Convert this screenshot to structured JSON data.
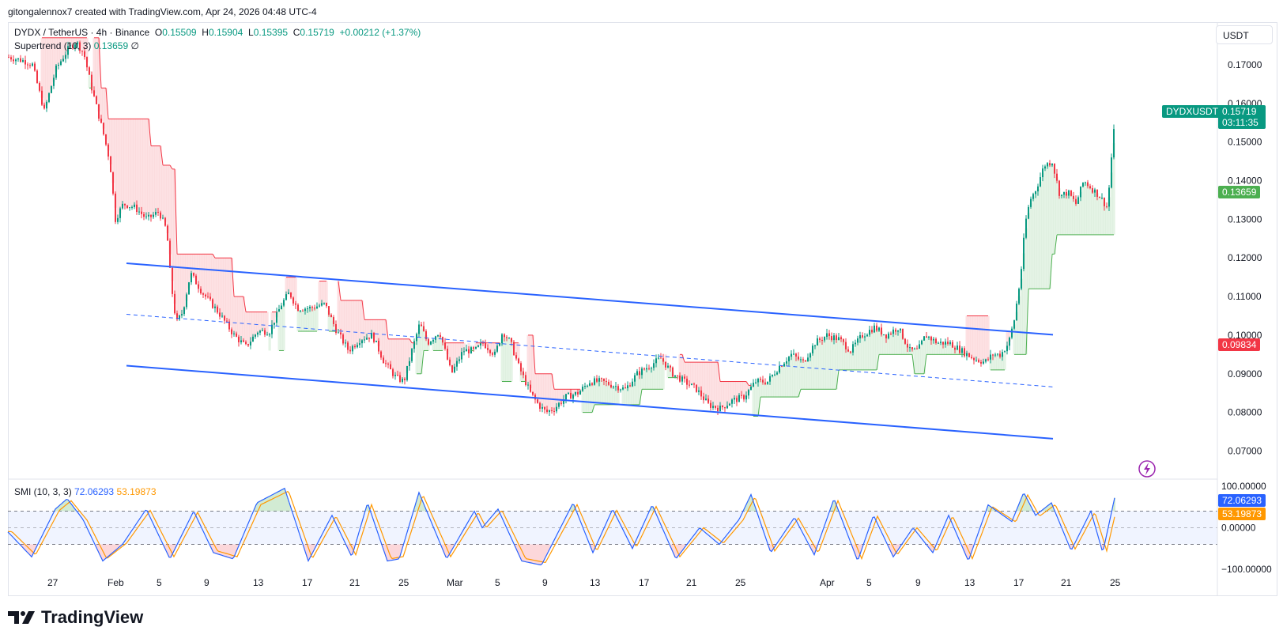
{
  "header": {
    "credit": "gitongalennox7 created with TradingView.com, Apr 24, 2026 04:48 UTC-4"
  },
  "legend": {
    "symbol": "DYDX / TetherUS · 4h · Binance",
    "o_label": "O",
    "o_value": "0.15509",
    "h_label": "H",
    "h_value": "0.15904",
    "l_label": "L",
    "l_value": "0.15395",
    "c_label": "C",
    "c_value": "0.15719",
    "change": "+0.00212 (+1.37%)",
    "supertrend_label": "Supertrend (10, 3)",
    "supertrend_value": "0.13659",
    "supertrend_extra": "∅"
  },
  "price_axis": {
    "unit": "USDT",
    "ticks": [
      "0.17000",
      "0.16000",
      "0.15000",
      "0.14000",
      "0.13000",
      "0.12000",
      "0.11000",
      "0.10000",
      "0.09000",
      "0.08000",
      "0.07000"
    ]
  },
  "badges": {
    "symbol_tag": "DYDXUSDT",
    "last_price": "0.15719",
    "countdown": "03:11:35",
    "supertrend": "0.13659",
    "level": "0.09834"
  },
  "smi": {
    "label": "SMI (10, 3, 3)",
    "value1": "72.06293",
    "value2": "53.19873",
    "axis_ticks": [
      "100.00000",
      "0.00000",
      "−100.00000"
    ]
  },
  "time_axis": {
    "labels": [
      "27",
      "Feb",
      "5",
      "9",
      "13",
      "17",
      "21",
      "25",
      "Mar",
      "5",
      "9",
      "13",
      "17",
      "21",
      "25",
      "Apr",
      "5",
      "9",
      "13",
      "17",
      "21",
      "25"
    ]
  },
  "branding": {
    "logo_text": "TradingView"
  },
  "colors": {
    "up": "#089981",
    "down": "#f23645",
    "channel": "#2962ff",
    "supertrend_up": "#4caf50",
    "supertrend_down": "#f23645",
    "smi_line": "#2962ff",
    "smi_signal": "#ff9800"
  },
  "chart_data": {
    "type": "candlestick",
    "title": "DYDX / TetherUS · 4h · Binance",
    "ylim": [
      0.066,
      0.179
    ],
    "close_path": [
      [
        0,
        0.172
      ],
      [
        20,
        0.171
      ],
      [
        30,
        0.17
      ],
      [
        45,
        0.158
      ],
      [
        60,
        0.169
      ],
      [
        75,
        0.174
      ],
      [
        85,
        0.176
      ],
      [
        95,
        0.173
      ],
      [
        105,
        0.164
      ],
      [
        120,
        0.152
      ],
      [
        128,
        0.145
      ],
      [
        135,
        0.13
      ],
      [
        145,
        0.134
      ],
      [
        160,
        0.133
      ],
      [
        175,
        0.13
      ],
      [
        190,
        0.132
      ],
      [
        200,
        0.127
      ],
      [
        205,
        0.114
      ],
      [
        212,
        0.103
      ],
      [
        220,
        0.106
      ],
      [
        230,
        0.116
      ],
      [
        245,
        0.111
      ],
      [
        265,
        0.106
      ],
      [
        285,
        0.1
      ],
      [
        300,
        0.097
      ],
      [
        315,
        0.101
      ],
      [
        330,
        0.101
      ],
      [
        345,
        0.108
      ],
      [
        355,
        0.111
      ],
      [
        365,
        0.107
      ],
      [
        380,
        0.107
      ],
      [
        400,
        0.108
      ],
      [
        415,
        0.101
      ],
      [
        430,
        0.096
      ],
      [
        445,
        0.099
      ],
      [
        460,
        0.1
      ],
      [
        475,
        0.093
      ],
      [
        490,
        0.089
      ],
      [
        500,
        0.088
      ],
      [
        510,
        0.096
      ],
      [
        520,
        0.103
      ],
      [
        530,
        0.098
      ],
      [
        545,
        0.101
      ],
      [
        560,
        0.09
      ],
      [
        575,
        0.096
      ],
      [
        590,
        0.096
      ],
      [
        600,
        0.098
      ],
      [
        615,
        0.095
      ],
      [
        625,
        0.101
      ],
      [
        635,
        0.098
      ],
      [
        645,
        0.092
      ],
      [
        660,
        0.085
      ],
      [
        670,
        0.082
      ],
      [
        680,
        0.08
      ],
      [
        690,
        0.081
      ],
      [
        705,
        0.084
      ],
      [
        720,
        0.085
      ],
      [
        735,
        0.088
      ],
      [
        750,
        0.088
      ],
      [
        765,
        0.087
      ],
      [
        780,
        0.086
      ],
      [
        795,
        0.09
      ],
      [
        810,
        0.092
      ],
      [
        825,
        0.094
      ],
      [
        840,
        0.09
      ],
      [
        855,
        0.088
      ],
      [
        870,
        0.086
      ],
      [
        885,
        0.082
      ],
      [
        900,
        0.081
      ],
      [
        915,
        0.083
      ],
      [
        930,
        0.084
      ],
      [
        945,
        0.088
      ],
      [
        960,
        0.088
      ],
      [
        975,
        0.092
      ],
      [
        990,
        0.095
      ],
      [
        1005,
        0.093
      ],
      [
        1020,
        0.098
      ],
      [
        1035,
        0.1
      ],
      [
        1050,
        0.099
      ],
      [
        1065,
        0.096
      ],
      [
        1080,
        0.1
      ],
      [
        1095,
        0.102
      ],
      [
        1110,
        0.1
      ],
      [
        1125,
        0.102
      ],
      [
        1140,
        0.096
      ],
      [
        1150,
        0.096
      ],
      [
        1160,
        0.1
      ],
      [
        1175,
        0.098
      ],
      [
        1190,
        0.098
      ],
      [
        1205,
        0.096
      ],
      [
        1220,
        0.094
      ],
      [
        1235,
        0.093
      ],
      [
        1245,
        0.095
      ],
      [
        1255,
        0.095
      ],
      [
        1265,
        0.098
      ],
      [
        1272,
        0.104
      ],
      [
        1280,
        0.115
      ],
      [
        1286,
        0.129
      ],
      [
        1292,
        0.135
      ],
      [
        1300,
        0.138
      ],
      [
        1310,
        0.144
      ],
      [
        1320,
        0.145
      ],
      [
        1330,
        0.136
      ],
      [
        1340,
        0.137
      ],
      [
        1350,
        0.134
      ],
      [
        1360,
        0.14
      ],
      [
        1370,
        0.138
      ],
      [
        1380,
        0.136
      ],
      [
        1390,
        0.133
      ],
      [
        1395,
        0.146
      ],
      [
        1400,
        0.157
      ]
    ],
    "channel": {
      "upper": [
        [
          150,
          0.1186
        ],
        [
          1322,
          0.1001
        ]
      ],
      "middle": [
        [
          150,
          0.1054
        ],
        [
          1322,
          0.0866
        ]
      ],
      "lower": [
        [
          150,
          0.0921
        ],
        [
          1322,
          0.0732
        ]
      ]
    },
    "supertrend": {
      "down_steps": [
        [
          40,
          0.177
        ],
        [
          115,
          0.164
        ],
        [
          125,
          0.156
        ],
        [
          140,
          0.156
        ],
        [
          180,
          0.149
        ],
        [
          195,
          0.144
        ],
        [
          205,
          0.143
        ],
        [
          212,
          0.121
        ],
        [
          260,
          0.12
        ],
        [
          285,
          0.11
        ],
        [
          300,
          0.106
        ],
        [
          340,
          0.106
        ],
        [
          350,
          0.115
        ],
        [
          390,
          0.114
        ],
        [
          420,
          0.109
        ],
        [
          450,
          0.104
        ],
        [
          480,
          0.099
        ],
        [
          510,
          0.098
        ],
        [
          650,
          0.1
        ],
        [
          665,
          0.09
        ],
        [
          690,
          0.086
        ],
        [
          830,
          0.095
        ],
        [
          855,
          0.093
        ],
        [
          900,
          0.088
        ],
        [
          935,
          0.087
        ],
        [
          1180,
          0.105
        ],
        [
          1250,
          0.101
        ]
      ],
      "up_steps": [
        [
          75,
          0.162
        ],
        [
          95,
          0.164
        ],
        [
          330,
          0.096
        ],
        [
          350,
          0.101
        ],
        [
          510,
          0.09
        ],
        [
          525,
          0.096
        ],
        [
          590,
          0.086
        ],
        [
          615,
          0.088
        ],
        [
          715,
          0.08
        ],
        [
          740,
          0.082
        ],
        [
          800,
          0.086
        ],
        [
          830,
          0.089
        ],
        [
          935,
          0.079
        ],
        [
          950,
          0.084
        ],
        [
          1000,
          0.086
        ],
        [
          1050,
          0.091
        ],
        [
          1100,
          0.095
        ],
        [
          1145,
          0.09
        ],
        [
          1160,
          0.095
        ],
        [
          1240,
          0.091
        ],
        [
          1265,
          0.095
        ],
        [
          1290,
          0.112
        ],
        [
          1320,
          0.121
        ],
        [
          1325,
          0.126
        ],
        [
          1390,
          0.126
        ],
        [
          1400,
          0.137
        ]
      ]
    },
    "smi": {
      "ylim": [
        -100,
        100
      ],
      "bands": [
        40,
        -40
      ],
      "zero": 0,
      "key_points": [
        [
          0,
          -10
        ],
        [
          30,
          -70
        ],
        [
          60,
          45
        ],
        [
          75,
          70
        ],
        [
          95,
          20
        ],
        [
          120,
          -80
        ],
        [
          145,
          -40
        ],
        [
          175,
          45
        ],
        [
          205,
          -75
        ],
        [
          235,
          40
        ],
        [
          260,
          -60
        ],
        [
          285,
          -75
        ],
        [
          315,
          60
        ],
        [
          350,
          95
        ],
        [
          380,
          -80
        ],
        [
          410,
          30
        ],
        [
          435,
          -70
        ],
        [
          455,
          60
        ],
        [
          480,
          -80
        ],
        [
          495,
          -75
        ],
        [
          520,
          85
        ],
        [
          555,
          -75
        ],
        [
          590,
          40
        ],
        [
          600,
          0
        ],
        [
          620,
          45
        ],
        [
          650,
          -80
        ],
        [
          675,
          -90
        ],
        [
          715,
          60
        ],
        [
          740,
          -60
        ],
        [
          765,
          45
        ],
        [
          790,
          -50
        ],
        [
          815,
          55
        ],
        [
          845,
          -75
        ],
        [
          875,
          0
        ],
        [
          900,
          -40
        ],
        [
          925,
          20
        ],
        [
          940,
          80
        ],
        [
          965,
          -60
        ],
        [
          995,
          25
        ],
        [
          1020,
          -65
        ],
        [
          1045,
          70
        ],
        [
          1075,
          -80
        ],
        [
          1095,
          30
        ],
        [
          1120,
          -70
        ],
        [
          1145,
          0
        ],
        [
          1170,
          -60
        ],
        [
          1190,
          30
        ],
        [
          1215,
          -80
        ],
        [
          1240,
          55
        ],
        [
          1270,
          15
        ],
        [
          1285,
          85
        ],
        [
          1300,
          30
        ],
        [
          1320,
          60
        ],
        [
          1345,
          -55
        ],
        [
          1370,
          40
        ],
        [
          1385,
          -60
        ],
        [
          1400,
          72
        ]
      ],
      "last_smi": 72.06293,
      "last_signal": 53.19873
    },
    "xlabels": [
      "27",
      "Feb",
      "5",
      "9",
      "13",
      "17",
      "21",
      "25",
      "Mar",
      "5",
      "9",
      "13",
      "17",
      "21",
      "25",
      "Apr",
      "5",
      "9",
      "13",
      "17",
      "21",
      "25"
    ]
  }
}
